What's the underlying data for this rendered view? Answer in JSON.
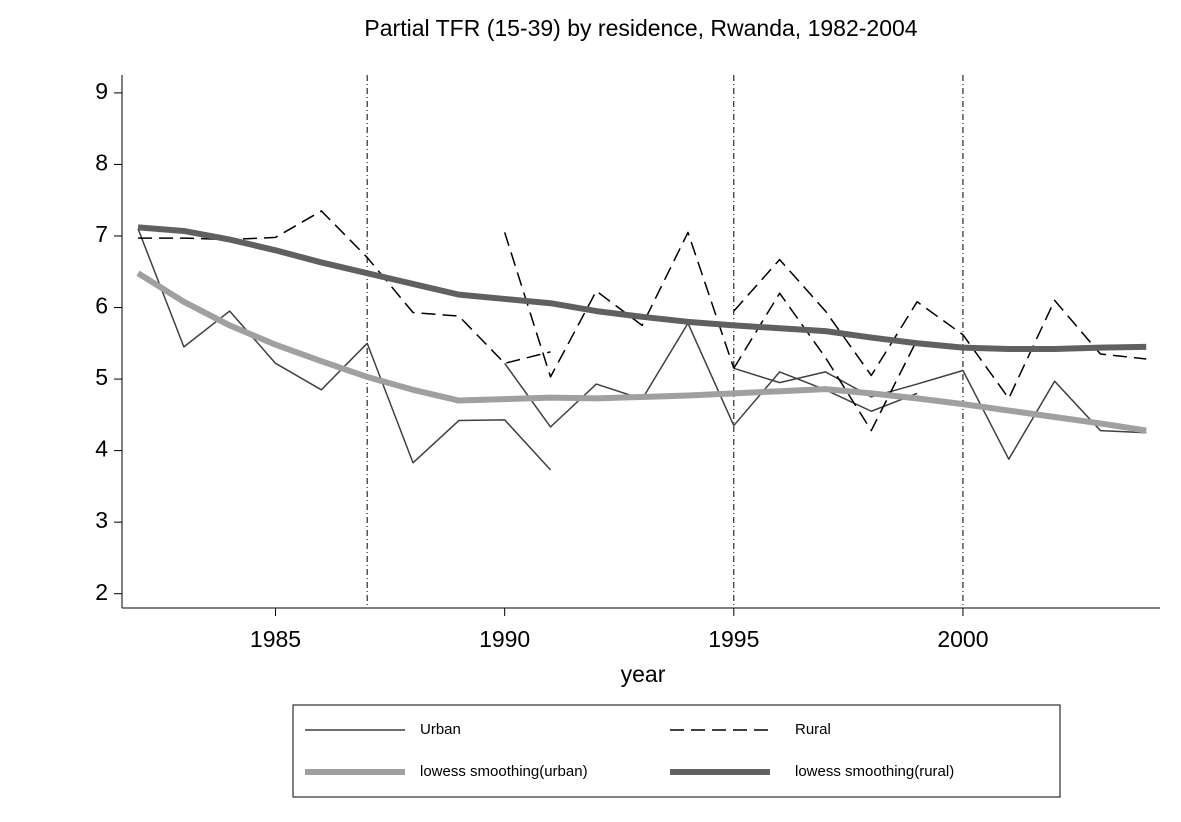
{
  "chart_data": {
    "type": "line",
    "title": "Partial TFR (15-39) by residence, Rwanda, 1982-2004",
    "x_label": "year",
    "xlim": [
      1981.65,
      2004.3
    ],
    "ylim": [
      1.8,
      9.25
    ],
    "xticks": [
      1985,
      1990,
      1995,
      2000
    ],
    "yticks": [
      2,
      3,
      4,
      5,
      6,
      7,
      8,
      9
    ],
    "xlines": [
      1987,
      1995,
      2000
    ],
    "series": [
      {
        "name": "Urban",
        "color": "#404040",
        "width": 1.5,
        "dash": "none",
        "x": [
          1982,
          1983,
          1984,
          1985,
          1986,
          1987,
          1988,
          1989,
          1990,
          1991,
          null,
          1990,
          1991,
          1992,
          1993,
          1994,
          1995,
          null,
          1995,
          1996,
          1997,
          1998,
          1999,
          null,
          1995,
          1996,
          1997,
          1998,
          1999,
          2000,
          2001,
          2002,
          2003,
          2004
        ],
        "values": [
          7.1,
          5.45,
          5.95,
          5.22,
          4.85,
          5.5,
          3.83,
          4.42,
          4.43,
          3.73,
          null,
          5.22,
          4.33,
          4.93,
          4.72,
          5.78,
          4.35,
          null,
          4.35,
          5.1,
          4.85,
          4.55,
          4.8,
          null,
          5.15,
          4.95,
          5.1,
          4.75,
          4.93,
          5.12,
          3.88,
          4.97,
          4.28,
          4.25
        ]
      },
      {
        "name": "Rural",
        "color": "#000000",
        "width": 1.5,
        "dash": "14 7",
        "x": [
          1982,
          1983,
          1984,
          1985,
          1986,
          1987,
          1988,
          1989,
          1990,
          1991,
          null,
          1990,
          1991,
          1992,
          1993,
          1994,
          1995,
          null,
          1995,
          1996,
          1997,
          1998,
          1999,
          null,
          1995,
          1996,
          1997,
          1998,
          1999,
          2000,
          2001,
          2002,
          2003,
          2004
        ],
        "values": [
          6.97,
          6.97,
          6.95,
          6.98,
          7.35,
          6.7,
          5.93,
          5.88,
          5.22,
          5.38,
          null,
          7.05,
          5.03,
          6.23,
          5.75,
          7.05,
          5.15,
          null,
          5.15,
          6.2,
          5.3,
          4.28,
          5.55,
          null,
          5.95,
          6.67,
          5.95,
          5.05,
          6.08,
          5.62,
          4.73,
          6.1,
          5.35,
          5.28
        ]
      },
      {
        "name": "lowess smoothing(urban)",
        "color": "#a0a0a0",
        "width": 6,
        "dash": "none",
        "x": [
          1982,
          1983,
          1984,
          1985,
          1986,
          1987,
          1988,
          1989,
          1990,
          1991,
          1992,
          1993,
          1994,
          1995,
          1996,
          1997,
          1998,
          1999,
          2000,
          2001,
          2002,
          2003,
          2004
        ],
        "values": [
          6.48,
          6.08,
          5.75,
          5.48,
          5.25,
          5.03,
          4.85,
          4.7,
          4.72,
          4.74,
          4.73,
          4.75,
          4.77,
          4.8,
          4.83,
          4.86,
          4.8,
          4.73,
          4.65,
          4.56,
          4.47,
          4.38,
          4.28
        ]
      },
      {
        "name": "lowess smoothing(rural)",
        "color": "#606060",
        "width": 6,
        "dash": "none",
        "x": [
          1982,
          1983,
          1984,
          1985,
          1986,
          1987,
          1988,
          1989,
          1990,
          1991,
          1992,
          1993,
          1994,
          1995,
          1996,
          1997,
          1998,
          1999,
          2000,
          2001,
          2002,
          2003,
          2004
        ],
        "values": [
          7.12,
          7.07,
          6.95,
          6.8,
          6.63,
          6.48,
          6.33,
          6.18,
          6.12,
          6.06,
          5.95,
          5.87,
          5.8,
          5.75,
          5.71,
          5.67,
          5.58,
          5.5,
          5.44,
          5.42,
          5.42,
          5.44,
          5.45
        ]
      }
    ]
  }
}
